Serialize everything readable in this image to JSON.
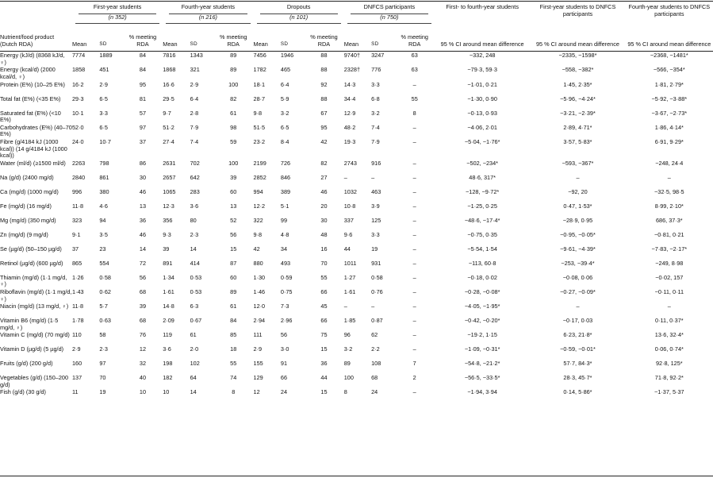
{
  "groups": [
    {
      "name": "First-year students",
      "n": "(n 352)"
    },
    {
      "name": "Fourth-year students",
      "n": "(n 216)"
    },
    {
      "name": "Dropouts",
      "n": "(n 101)"
    },
    {
      "name": "DNFCS participants",
      "n": "(n 750)"
    }
  ],
  "header": {
    "item": "Nutrient/food product (Dutch RDA)",
    "mean": "Mean",
    "sd": "SD",
    "pct": "% meeting RDA",
    "ci1": "First- to fourth-year students",
    "ci2": "First-year students to DNFCS participants",
    "ci3": "Fourth-year students to DNFCS participants",
    "ci_sub": "95 % CI around mean difference"
  },
  "rows": [
    {
      "item": "Energy (kJ/d) (8368 kJ/d, ♀)",
      "v": [
        "7774",
        "1889",
        "84",
        "7816",
        "1343",
        "89",
        "7456",
        "1946",
        "88",
        "9740†",
        "3247",
        "63"
      ],
      "ci": [
        "−332, 248",
        "−2335, −1598*",
        "−2368, −1481*"
      ]
    },
    {
      "item": "Energy (kcal/d) (2000 kcal/d, ♀)",
      "v": [
        "1858",
        "451",
        "84",
        "1868",
        "321",
        "89",
        "1782",
        "465",
        "88",
        "2328†",
        "776",
        "63"
      ],
      "ci": [
        "−79·3, 59·3",
        "−558, −382*",
        "−566, −354*"
      ]
    },
    {
      "item": "Protein (E%) (10–25 E%)",
      "v": [
        "16·2",
        "2·9",
        "95",
        "16·6",
        "2·9",
        "100",
        "18·1",
        "6·4",
        "92",
        "14·3",
        "3·3",
        "–"
      ],
      "ci": [
        "−1·01, 0·21",
        "1·45, 2·35*",
        "1·81, 2·79*"
      ]
    },
    {
      "item": "Total fat (E%) (<35 E%)",
      "v": [
        "29·3",
        "6·5",
        "81",
        "29·5",
        "6·4",
        "82",
        "28·7",
        "5·9",
        "88",
        "34·4",
        "6·8",
        "55"
      ],
      "ci": [
        "−1·30, 0·90",
        "−5·96, −4·24*",
        "−5·92, −3·88*"
      ]
    },
    {
      "item": "Saturated fat (E%) (<10 E%)",
      "v": [
        "10·1",
        "3·3",
        "57",
        "9·7",
        "2·8",
        "61",
        "9·8",
        "3·2",
        "67",
        "12·9",
        "3·2",
        "8"
      ],
      "ci": [
        "−0·13, 0·93",
        "−3·21, −2·39*",
        "−3·67, −2·73*"
      ]
    },
    {
      "item": "Carbohydrates (E%) (40–70 E%)",
      "v": [
        "52·0",
        "6·5",
        "97",
        "51·2",
        "7·9",
        "98",
        "51·5",
        "6·5",
        "95",
        "48·2",
        "7·4",
        "–"
      ],
      "ci": [
        "−4·06, 2·01",
        "2·89, 4·71*",
        "1·86, 4·14*"
      ]
    },
    {
      "item": "Fibre (g/4184 kJ (1000 kcal)) (14 g/4184 kJ (1000 kcal))",
      "v": [
        "24·0",
        "10·7",
        "37",
        "27·4",
        "7·4",
        "59",
        "23·2",
        "8·4",
        "42",
        "19·3",
        "7·9",
        "–"
      ],
      "ci": [
        "−5·04, −1·76*",
        "3·57, 5·83*",
        "6·91, 9·29*"
      ]
    },
    {
      "item": "Water (ml/d) (≥1500 ml/d)",
      "v": [
        "2263",
        "798",
        "86",
        "2631",
        "702",
        "100",
        "2199",
        "726",
        "82",
        "2743",
        "916",
        "–"
      ],
      "ci": [
        "−502, −234*",
        "−593, −367*",
        "−248, 24·4"
      ]
    },
    {
      "item": "Na (g/d) (2400 mg/d)",
      "v": [
        "2840",
        "861",
        "30",
        "2657",
        "642",
        "39",
        "2852",
        "846",
        "27",
        "–",
        "–",
        "–"
      ],
      "ci": [
        "48·6, 317*",
        "–",
        "–"
      ]
    },
    {
      "item": "Ca (mg/d) (1000 mg/d)",
      "v": [
        "996",
        "380",
        "46",
        "1065",
        "283",
        "60",
        "994",
        "389",
        "46",
        "1032",
        "463",
        "–"
      ],
      "ci": [
        "−128, −9·72*",
        "−92, 20",
        "−32·5, 98·5"
      ]
    },
    {
      "item": "Fe (mg/d) (16 mg/d)",
      "v": [
        "11·8",
        "4·6",
        "13",
        "12·3",
        "3·6",
        "13",
        "12·2",
        "5·1",
        "20",
        "10·8",
        "3·9",
        "–"
      ],
      "ci": [
        "−1·25, 0·25",
        "0·47, 1·53*",
        "8·99, 2·10*"
      ]
    },
    {
      "item": "Mg (mg/d) (350 mg/d)",
      "v": [
        "323",
        "94",
        "36",
        "356",
        "80",
        "52",
        "322",
        "99",
        "30",
        "337",
        "125",
        "–"
      ],
      "ci": [
        "−48·6, −17·4*",
        "−28·9, 0·95",
        "686, 37·3*"
      ]
    },
    {
      "item": "Zn (mg/d) (9 mg/d)",
      "v": [
        "9·1",
        "3·5",
        "46",
        "9·3",
        "2·3",
        "56",
        "9·8",
        "4·8",
        "48",
        "9·6",
        "3·3",
        "–"
      ],
      "ci": [
        "−0·75, 0·35",
        "−0·95, −0·05*",
        "−0·81, 0·21"
      ]
    },
    {
      "item": "Se (µg/d) (50–150 µg/d)",
      "v": [
        "37",
        "23",
        "14",
        "39",
        "14",
        "15",
        "42",
        "34",
        "16",
        "44",
        "19",
        "–"
      ],
      "ci": [
        "−5·54, 1·54",
        "−9·61, −4·39*",
        "−7·83, −2·17*"
      ]
    },
    {
      "item": "Retinol (µg/d) (600 µg/d)",
      "v": [
        "865",
        "554",
        "72",
        "891",
        "414",
        "87",
        "880",
        "493",
        "70",
        "1011",
        "931",
        "–"
      ],
      "ci": [
        "−113, 60·8",
        "−253, −39·4*",
        "−249, 8·98"
      ]
    },
    {
      "item": "Thiamin (mg/d) (1·1 mg/d, ♀)",
      "v": [
        "1·26",
        "0·58",
        "56",
        "1·34",
        "0·53",
        "60",
        "1·30",
        "0·59",
        "55",
        "1·27",
        "0·58",
        "–"
      ],
      "ci": [
        "−0·18, 0·02",
        "−0·08, 0·06",
        "−0·02, 157"
      ]
    },
    {
      "item": "Riboflavin (mg/d) (1·1 mg/d, ♀)",
      "v": [
        "1·43",
        "0·62",
        "68",
        "1·61",
        "0·53",
        "89",
        "1·46",
        "0·75",
        "66",
        "1·61",
        "0·76",
        "–"
      ],
      "ci": [
        "−0·28, −0·08*",
        "−0·27, −0·09*",
        "−0·11, 0·11"
      ]
    },
    {
      "item": "Niacin (mg/d) (13 mg/d, ♀)",
      "v": [
        "11·8",
        "5·7",
        "39",
        "14·8",
        "6·3",
        "61",
        "12·0",
        "7·3",
        "45",
        "–",
        "–",
        "–"
      ],
      "ci": [
        "−4·05, −1·95*",
        "–",
        "–"
      ]
    },
    {
      "item": "Vitamin B6 (mg/d) (1·5 mg/d, ♀)",
      "v": [
        "1·78",
        "0·63",
        "68",
        "2·09",
        "0·67",
        "84",
        "2·94",
        "2·96",
        "66",
        "1·85",
        "0·87",
        "–"
      ],
      "ci": [
        "−0·42, −0·20*",
        "−0·17, 0·03",
        "0·11, 0·37*"
      ]
    },
    {
      "item": "Vitamin C (mg/d) (70 mg/d)",
      "v": [
        "110",
        "58",
        "76",
        "119",
        "61",
        "85",
        "111",
        "56",
        "75",
        "96",
        "62",
        "–"
      ],
      "ci": [
        "−19·2, 1·15",
        "6·23, 21·8*",
        "13·6, 32·4*"
      ]
    },
    {
      "item": "Vitamin D (µg/d) (5 µg/d)",
      "v": [
        "2·9",
        "2·3",
        "12",
        "3·6",
        "2·0",
        "18",
        "2·9",
        "3·0",
        "15",
        "3·2",
        "2·2",
        "–"
      ],
      "ci": [
        "−1·09, −0·31*",
        "−0·59, −0·01*",
        "0·06, 0·74*"
      ]
    },
    {
      "item": "Fruits (g/d) (200 g/d)",
      "v": [
        "160",
        "97",
        "32",
        "198",
        "102",
        "55",
        "155",
        "91",
        "36",
        "89",
        "108",
        "7"
      ],
      "ci": [
        "−54·8, −21·2*",
        "57·7, 84·3*",
        "92·8, 125*"
      ]
    },
    {
      "item": "Vegetables (g/d) (150–200 g/d)",
      "v": [
        "137",
        "70",
        "40",
        "182",
        "64",
        "74",
        "129",
        "66",
        "44",
        "100",
        "68",
        "2"
      ],
      "ci": [
        "−56·5, −33·5*",
        "28·3, 45·7*",
        "71·8, 92·2*"
      ]
    },
    {
      "item": "Fish (g/d) (30 g/d)",
      "v": [
        "11",
        "19",
        "10",
        "10",
        "14",
        "8",
        "12",
        "24",
        "15",
        "8",
        "24",
        "–"
      ],
      "ci": [
        "−1·94, 3·94",
        "0·14, 5·86*",
        "−1·37, 5·37"
      ]
    }
  ]
}
